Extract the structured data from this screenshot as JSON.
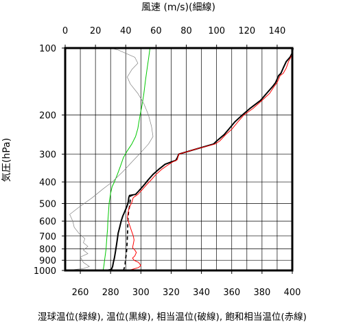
{
  "chart_data": {
    "type": "line",
    "title": "",
    "top_axis_label": "風速 (m/s)(細線)",
    "left_axis_label": "気圧(hPa)",
    "caption": "湿球温位(緑線), 温位(黒線), 相当温位(破線), 飽和相当温位(赤線)",
    "xlim": [
      250,
      400
    ],
    "x_ticks": [
      260,
      280,
      300,
      320,
      340,
      360,
      380,
      400
    ],
    "wind_xlim": [
      0,
      150
    ],
    "wind_ticks": [
      0,
      20,
      40,
      60,
      80,
      100,
      120,
      140
    ],
    "pressure_ylim": [
      1000,
      100
    ],
    "y_scale": "log",
    "y_ticks": [
      1000,
      900,
      800,
      700,
      600,
      500,
      400,
      300,
      200,
      100
    ],
    "grid": true,
    "series": [
      {
        "name": "湿球温位",
        "color": "#00c800",
        "style": "solid",
        "points": [
          [
            275,
            1000
          ],
          [
            275.6,
            950
          ],
          [
            276,
            900
          ],
          [
            276.5,
            850
          ],
          [
            277,
            800
          ],
          [
            277.3,
            750
          ],
          [
            277.6,
            700
          ],
          [
            278,
            650
          ],
          [
            278.2,
            600
          ],
          [
            278.6,
            550
          ],
          [
            279,
            500
          ],
          [
            280,
            450
          ],
          [
            281,
            420
          ],
          [
            282.5,
            400
          ],
          [
            284.5,
            370
          ],
          [
            286.5,
            340
          ],
          [
            288.5,
            310
          ],
          [
            291,
            290
          ],
          [
            294,
            270
          ],
          [
            296.5,
            250
          ],
          [
            298,
            230
          ],
          [
            299.5,
            200
          ],
          [
            300.8,
            180
          ],
          [
            302,
            160
          ],
          [
            303,
            140
          ],
          [
            304,
            125
          ],
          [
            305.2,
            110
          ],
          [
            306,
            100
          ]
        ]
      },
      {
        "name": "温位",
        "color": "#000000",
        "style": "solid",
        "points": [
          [
            277,
            1000
          ],
          [
            280.5,
            990
          ],
          [
            281.3,
            960
          ],
          [
            281.8,
            920
          ],
          [
            282.5,
            880
          ],
          [
            283,
            840
          ],
          [
            283.5,
            800
          ],
          [
            284,
            760
          ],
          [
            284.5,
            720
          ],
          [
            285,
            680
          ],
          [
            286,
            640
          ],
          [
            287,
            600
          ],
          [
            288,
            570
          ],
          [
            289,
            550
          ],
          [
            290,
            530
          ],
          [
            291,
            510
          ],
          [
            291.7,
            490
          ],
          [
            292,
            470
          ],
          [
            292.5,
            460
          ],
          [
            296.5,
            455
          ],
          [
            298.5,
            440
          ],
          [
            300.5,
            425
          ],
          [
            302.5,
            410
          ],
          [
            305,
            390
          ],
          [
            308,
            370
          ],
          [
            312,
            350
          ],
          [
            316,
            333
          ],
          [
            320,
            325
          ],
          [
            323,
            320
          ],
          [
            324,
            312
          ],
          [
            325,
            300
          ],
          [
            336,
            285
          ],
          [
            348,
            270
          ],
          [
            350,
            262
          ],
          [
            355,
            245
          ],
          [
            358,
            232
          ],
          [
            362,
            215
          ],
          [
            367,
            200
          ],
          [
            372,
            187
          ],
          [
            379,
            172
          ],
          [
            383,
            160
          ],
          [
            387,
            149
          ],
          [
            389,
            143
          ],
          [
            391,
            133
          ],
          [
            392.5,
            130
          ],
          [
            394,
            123
          ],
          [
            396,
            115
          ],
          [
            398.5,
            110
          ],
          [
            400,
            105
          ],
          [
            400.5,
            100
          ]
        ]
      },
      {
        "name": "相当温位",
        "color": "#000000",
        "style": "dashed",
        "points": [
          [
            288.5,
            1000
          ],
          [
            289.5,
            950
          ],
          [
            289.8,
            900
          ],
          [
            290.3,
            850
          ],
          [
            290.7,
            800
          ],
          [
            290.9,
            750
          ],
          [
            291.1,
            700
          ],
          [
            291.3,
            650
          ],
          [
            291.4,
            600
          ],
          [
            291.6,
            570
          ],
          [
            291.8,
            550
          ],
          [
            292.2,
            530
          ],
          [
            292.6,
            510
          ],
          [
            293,
            480
          ],
          [
            293.2,
            462
          ],
          [
            296.5,
            455
          ]
        ]
      },
      {
        "name": "飽和相当温位",
        "color": "#ff0000",
        "style": "solid",
        "points": [
          [
            290.5,
            1000
          ],
          [
            294,
            990
          ],
          [
            298.5,
            970
          ],
          [
            300,
            950
          ],
          [
            298.5,
            920
          ],
          [
            295.5,
            900
          ],
          [
            294.5,
            880
          ],
          [
            296,
            860
          ],
          [
            297,
            830
          ],
          [
            296,
            810
          ],
          [
            294.5,
            790
          ],
          [
            295,
            760
          ],
          [
            295.5,
            730
          ],
          [
            295,
            700
          ],
          [
            294,
            670
          ],
          [
            293,
            640
          ],
          [
            292,
            610
          ],
          [
            291,
            580
          ],
          [
            291.5,
            550
          ],
          [
            292,
            530
          ],
          [
            293,
            510
          ],
          [
            294,
            495
          ],
          [
            294.5,
            480
          ],
          [
            295,
            470
          ],
          [
            298,
            455
          ],
          [
            300,
            440
          ],
          [
            302,
            425
          ],
          [
            304,
            410
          ],
          [
            307,
            390
          ],
          [
            310,
            370
          ],
          [
            314,
            350
          ],
          [
            318,
            335
          ],
          [
            321,
            325
          ],
          [
            324,
            318
          ],
          [
            325,
            300
          ],
          [
            336,
            285
          ],
          [
            349,
            270
          ],
          [
            352,
            262
          ],
          [
            356,
            245
          ],
          [
            360,
            232
          ],
          [
            364,
            215
          ],
          [
            368,
            200
          ],
          [
            374,
            187
          ],
          [
            380,
            172
          ],
          [
            385,
            160
          ],
          [
            388,
            149
          ],
          [
            390,
            143
          ],
          [
            392,
            133
          ],
          [
            394,
            130
          ],
          [
            396,
            123
          ],
          [
            397.5,
            115
          ],
          [
            399,
            110
          ],
          [
            400,
            105
          ],
          [
            400.5,
            100
          ]
        ]
      },
      {
        "name": "風速",
        "axis": "wind",
        "color": "#808080",
        "style": "thin",
        "points": [
          [
            1,
            1000
          ],
          [
            12,
            980
          ],
          [
            16,
            960
          ],
          [
            12,
            920
          ],
          [
            10,
            870
          ],
          [
            15,
            840
          ],
          [
            12,
            810
          ],
          [
            15,
            780
          ],
          [
            12,
            750
          ],
          [
            13,
            720
          ],
          [
            9,
            680
          ],
          [
            6,
            640
          ],
          [
            5,
            600
          ],
          [
            3,
            560
          ],
          [
            9,
            520
          ],
          [
            18,
            470
          ],
          [
            25,
            430
          ],
          [
            31,
            400
          ],
          [
            38,
            360
          ],
          [
            45,
            320
          ],
          [
            50,
            295
          ],
          [
            55,
            270
          ],
          [
            58,
            250
          ],
          [
            57,
            225
          ],
          [
            55,
            200
          ],
          [
            52,
            178
          ],
          [
            48,
            160
          ],
          [
            43,
            145
          ],
          [
            41,
            135
          ],
          [
            44,
            125
          ],
          [
            48,
            117
          ],
          [
            46,
            110
          ],
          [
            35,
            102
          ],
          [
            30,
            100
          ]
        ]
      }
    ]
  }
}
